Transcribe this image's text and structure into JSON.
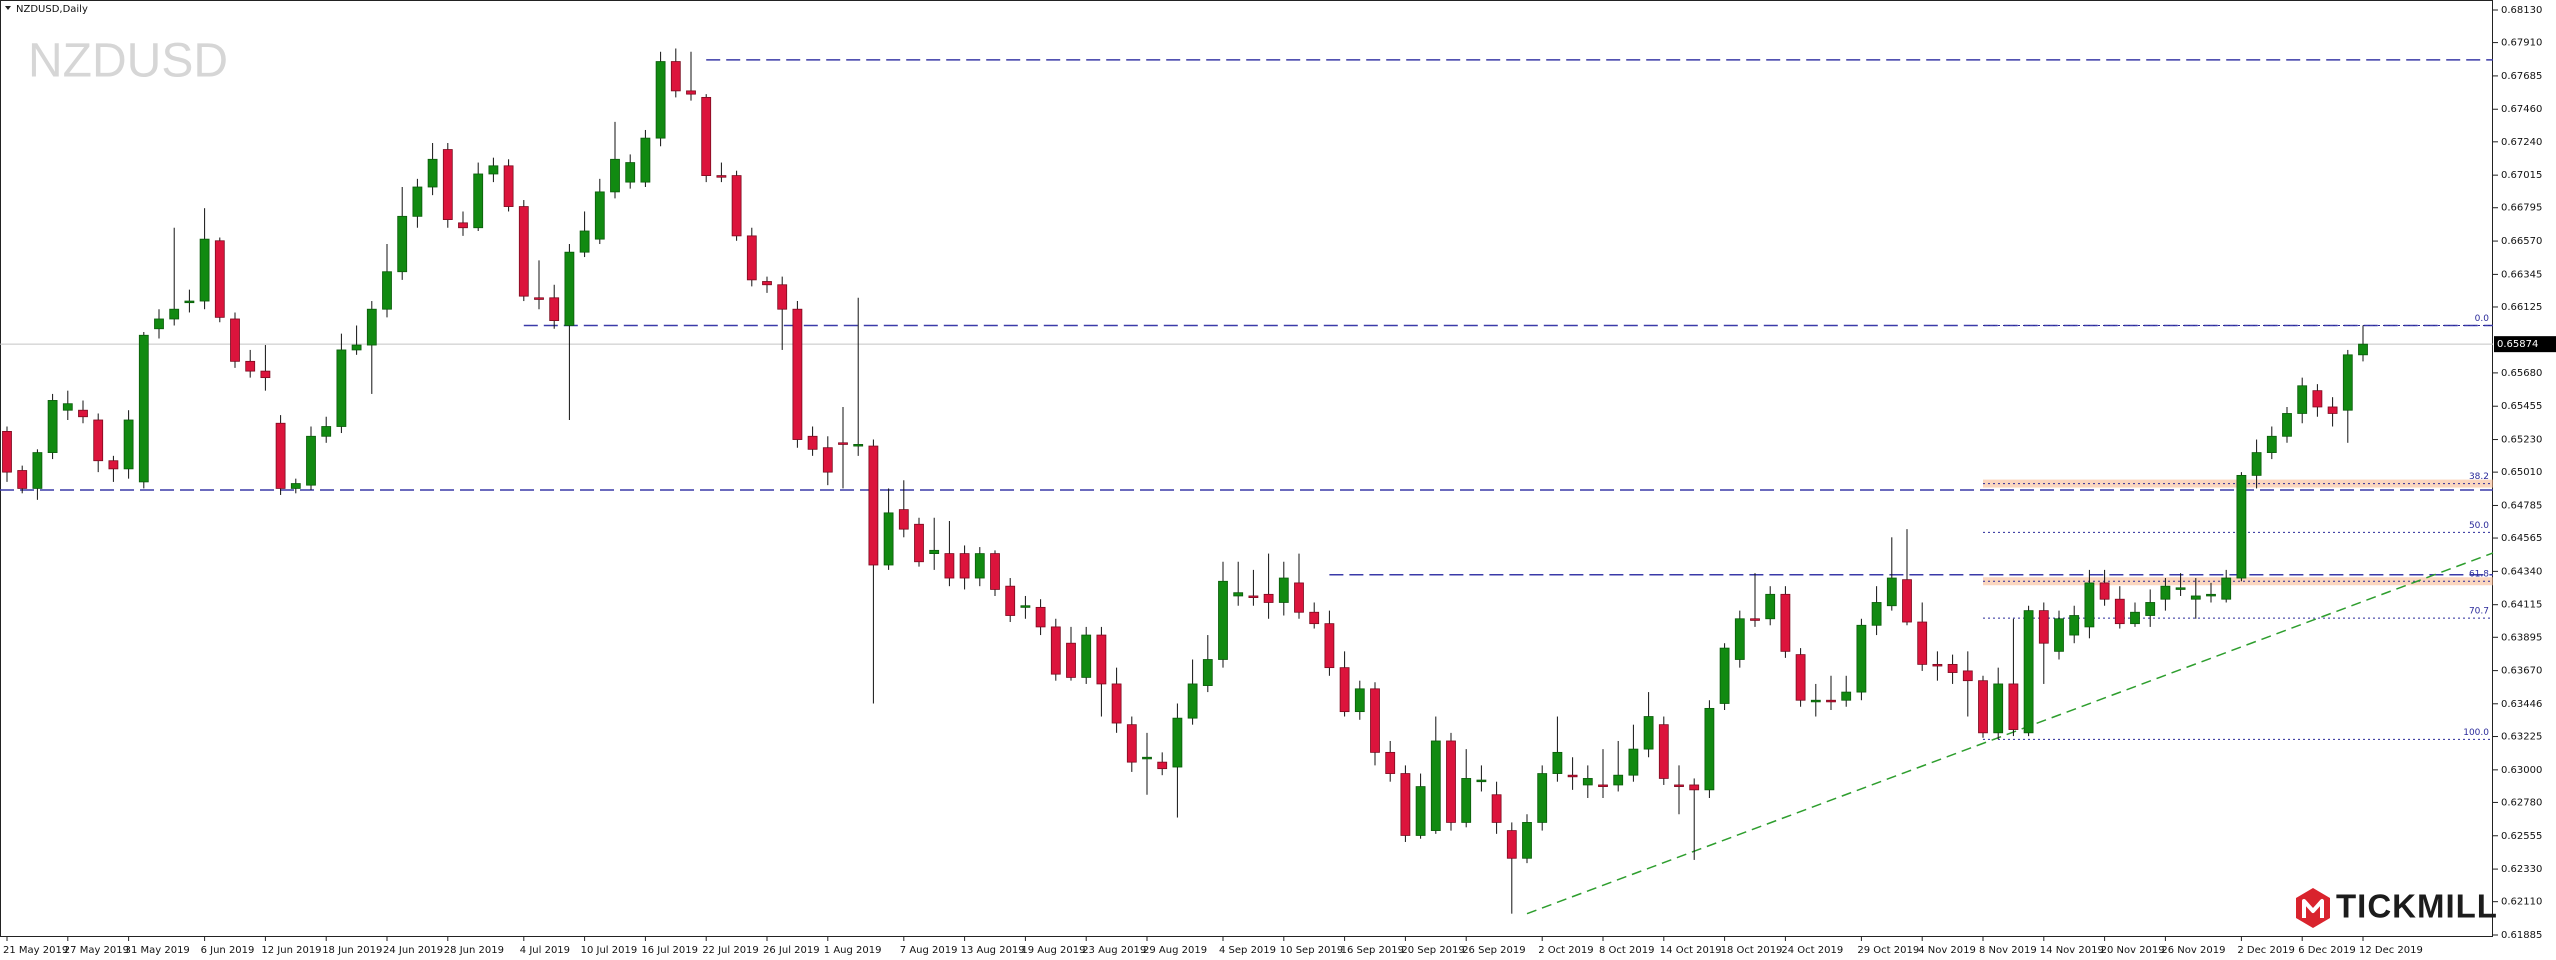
{
  "chart_data": {
    "type": "candlestick",
    "title": "NZDUSD,Daily",
    "watermark": "NZDUSD",
    "logo": "TICKMILL",
    "colors": {
      "up": "#118a11",
      "down": "#dc143c",
      "wick": "#111111",
      "levels": "#3a3aa8",
      "trend": "#2e9e2e",
      "fib": "#2a2a9a",
      "zone": "#f7b48a",
      "price_line": "#c4c4c4"
    },
    "ylim": [
      0.61885,
      0.6813
    ],
    "yticks": [
      {
        "value": 0.6813,
        "label": "0.68130"
      },
      {
        "value": 0.6791,
        "label": "0.67910"
      },
      0.67685,
      {
        "value": 0.6746,
        "label": "0.67460"
      },
      {
        "value": 0.6724,
        "label": "0.67240"
      },
      0.67015,
      0.66795,
      {
        "value": 0.6657,
        "label": "0.66570"
      },
      0.66345,
      0.66125,
      {
        "value": 0.6568,
        "label": "0.65680"
      },
      0.65455,
      {
        "value": 0.6523,
        "label": "0.65230"
      },
      {
        "value": 0.6501,
        "label": "0.65010"
      },
      0.64785,
      0.64565,
      {
        "value": 0.6434,
        "label": "0.64340"
      },
      0.64115,
      0.63895,
      {
        "value": 0.6367,
        "label": "0.63670"
      },
      0.63446,
      0.63225,
      {
        "value": 0.63,
        "label": "0.63000"
      },
      {
        "value": 0.6278,
        "label": "0.62780"
      },
      0.62555,
      {
        "value": 0.6233,
        "label": "0.62330"
      },
      {
        "value": 0.6211,
        "label": "0.62110"
      },
      0.61885
    ],
    "categories": [
      "21 May 2019",
      null,
      null,
      null,
      "27 May 2019",
      null,
      null,
      null,
      "31 May 2019",
      null,
      null,
      null,
      null,
      "6 Jun 2019",
      null,
      null,
      null,
      "12 Jun 2019",
      null,
      null,
      null,
      "18 Jun 2019",
      null,
      null,
      null,
      "24 Jun 2019",
      null,
      null,
      null,
      "28 Jun 2019",
      null,
      null,
      null,
      null,
      "4 Jul 2019",
      null,
      null,
      null,
      "10 Jul 2019",
      null,
      null,
      null,
      "16 Jul 2019",
      null,
      null,
      null,
      "22 Jul 2019",
      null,
      null,
      null,
      "26 Jul 2019",
      null,
      null,
      null,
      "1 Aug 2019",
      null,
      null,
      null,
      null,
      "7 Aug 2019",
      null,
      null,
      null,
      "13 Aug 2019",
      null,
      null,
      null,
      "19 Aug 2019",
      null,
      null,
      null,
      "23 Aug 2019",
      null,
      null,
      null,
      "29 Aug 2019",
      null,
      null,
      null,
      null,
      "4 Sep 2019",
      null,
      null,
      null,
      "10 Sep 2019",
      null,
      null,
      null,
      "16 Sep 2019",
      null,
      null,
      null,
      "20 Sep 2019",
      null,
      null,
      null,
      "26 Sep 2019",
      null,
      null,
      null,
      null,
      "2 Oct 2019",
      null,
      null,
      null,
      "8 Oct 2019",
      null,
      null,
      null,
      "14 Oct 2019",
      null,
      null,
      null,
      "18 Oct 2019",
      null,
      null,
      null,
      "24 Oct 2019",
      null,
      null,
      null,
      null,
      "29 Oct 2019",
      null,
      null,
      null,
      "4 Nov 2019",
      null,
      null,
      null,
      "8 Nov 2019",
      null,
      null,
      null,
      "14 Nov 2019",
      null,
      null,
      null,
      "20 Nov 2019",
      null,
      null,
      null,
      "26 Nov 2019",
      null,
      null,
      null,
      null,
      "2 Dec 2019",
      null,
      null,
      null,
      "6 Dec 2019",
      null,
      null,
      null,
      "12 Dec 2019"
    ],
    "ohlc": [
      [
        0.65285,
        0.65318,
        0.64944,
        0.6501
      ],
      [
        0.65021,
        0.65054,
        0.64867,
        0.649
      ],
      [
        0.649,
        0.65164,
        0.64823,
        0.65142
      ],
      [
        0.65142,
        0.65538,
        0.65098,
        0.65494
      ],
      [
        0.65428,
        0.6556,
        0.65362,
        0.65472
      ],
      [
        0.65428,
        0.65494,
        0.6534,
        0.65384
      ],
      [
        0.65362,
        0.65406,
        0.6501,
        0.65087
      ],
      [
        0.65087,
        0.6512,
        0.64944,
        0.65032
      ],
      [
        0.65032,
        0.65428,
        0.64966,
        0.65362
      ],
      [
        0.64944,
        0.65956,
        0.649,
        0.65934
      ],
      [
        0.65978,
        0.6611,
        0.65912,
        0.66044
      ],
      [
        0.66044,
        0.6666,
        0.66,
        0.6611
      ],
      [
        0.66154,
        0.66242,
        0.66088,
        0.66165
      ],
      [
        0.66165,
        0.66792,
        0.6611,
        0.66583
      ],
      [
        0.66572,
        0.66594,
        0.66022,
        0.66055
      ],
      [
        0.66044,
        0.66088,
        0.65714,
        0.65758
      ],
      [
        0.65758,
        0.65835,
        0.65648,
        0.65692
      ],
      [
        0.65692,
        0.65868,
        0.6556,
        0.65648
      ],
      [
        0.6534,
        0.65395,
        0.64856,
        0.649
      ],
      [
        0.649,
        0.64966,
        0.64867,
        0.64933
      ],
      [
        0.64922,
        0.65318,
        0.64889,
        0.65252
      ],
      [
        0.65252,
        0.65384,
        0.65208,
        0.65318
      ],
      [
        0.65318,
        0.65945,
        0.65274,
        0.65835
      ],
      [
        0.65835,
        0.66,
        0.65802,
        0.65868
      ],
      [
        0.65868,
        0.66165,
        0.65538,
        0.6611
      ],
      [
        0.6611,
        0.6655,
        0.66055,
        0.66363
      ],
      [
        0.66363,
        0.66935,
        0.66308,
        0.66737
      ],
      [
        0.66737,
        0.6699,
        0.6666,
        0.66935
      ],
      [
        0.66935,
        0.67232,
        0.6688,
        0.67122
      ],
      [
        0.67188,
        0.67232,
        0.6666,
        0.66715
      ],
      [
        0.66693,
        0.6677,
        0.66605,
        0.6666
      ],
      [
        0.6666,
        0.671,
        0.66638,
        0.67023
      ],
      [
        0.67023,
        0.67133,
        0.66968,
        0.67078
      ],
      [
        0.67078,
        0.67122,
        0.6677,
        0.66803
      ],
      [
        0.66803,
        0.66847,
        0.66165,
        0.66198
      ],
      [
        0.66187,
        0.6644,
        0.6611,
        0.66176
      ],
      [
        0.66187,
        0.66275,
        0.65978,
        0.66033
      ],
      [
        0.66,
        0.6655,
        0.65362,
        0.66495
      ],
      [
        0.66495,
        0.6677,
        0.66462,
        0.66638
      ],
      [
        0.66583,
        0.6699,
        0.6655,
        0.66902
      ],
      [
        0.66902,
        0.67375,
        0.66858,
        0.67122
      ],
      [
        0.66968,
        0.67155,
        0.66924,
        0.671
      ],
      [
        0.66968,
        0.6732,
        0.66935,
        0.67265
      ],
      [
        0.67265,
        0.67848,
        0.6721,
        0.67782
      ],
      [
        0.67782,
        0.6787,
        0.6754,
        0.67584
      ],
      [
        0.67584,
        0.67848,
        0.67518,
        0.67562
      ],
      [
        0.6754,
        0.67562,
        0.66968,
        0.67012
      ],
      [
        0.67012,
        0.671,
        0.66968,
        0.67001
      ],
      [
        0.67012,
        0.67045,
        0.66572,
        0.66605
      ],
      [
        0.66605,
        0.6666,
        0.66264,
        0.66308
      ],
      [
        0.66297,
        0.6633,
        0.6622,
        0.66275
      ],
      [
        0.66275,
        0.6633,
        0.65835,
        0.6611
      ],
      [
        0.6611,
        0.66165,
        0.65175,
        0.6523
      ],
      [
        0.65252,
        0.65318,
        0.6512,
        0.65164
      ],
      [
        0.65175,
        0.65252,
        0.64922,
        0.6501
      ],
      [
        0.65208,
        0.6545,
        0.649,
        0.65197
      ],
      [
        0.65186,
        0.66187,
        0.6512,
        0.65197
      ],
      [
        0.65186,
        0.6523,
        0.63448,
        0.64383
      ],
      [
        0.64383,
        0.649,
        0.6435,
        0.64735
      ],
      [
        0.64757,
        0.64955,
        0.6457,
        0.64625
      ],
      [
        0.64658,
        0.64702,
        0.64372,
        0.64405
      ],
      [
        0.6446,
        0.64702,
        0.6435,
        0.64482
      ],
      [
        0.6446,
        0.6468,
        0.6424,
        0.64295
      ],
      [
        0.6446,
        0.64515,
        0.64218,
        0.64295
      ],
      [
        0.64295,
        0.64504,
        0.6424,
        0.6446
      ],
      [
        0.6446,
        0.64482,
        0.64174,
        0.64218
      ],
      [
        0.6424,
        0.64295,
        0.63998,
        0.64042
      ],
      [
        0.64097,
        0.64174,
        0.6402,
        0.64108
      ],
      [
        0.64097,
        0.64152,
        0.6391,
        0.63965
      ],
      [
        0.63965,
        0.6402,
        0.63602,
        0.63646
      ],
      [
        0.63855,
        0.63965,
        0.63602,
        0.63624
      ],
      [
        0.63624,
        0.63965,
        0.6358,
        0.6391
      ],
      [
        0.6391,
        0.63965,
        0.6336,
        0.6358
      ],
      [
        0.6358,
        0.6369,
        0.6325,
        0.63316
      ],
      [
        0.63305,
        0.6336,
        0.62986,
        0.63052
      ],
      [
        0.63074,
        0.6325,
        0.62832,
        0.63085
      ],
      [
        0.63052,
        0.63118,
        0.62964,
        0.63008
      ],
      [
        0.63019,
        0.63448,
        0.62678,
        0.63349
      ],
      [
        0.63349,
        0.63745,
        0.63305,
        0.6358
      ],
      [
        0.63569,
        0.6391,
        0.63525,
        0.63745
      ],
      [
        0.63745,
        0.64405,
        0.6369,
        0.64273
      ],
      [
        0.64174,
        0.64405,
        0.64108,
        0.64196
      ],
      [
        0.64174,
        0.6435,
        0.64108,
        0.64163
      ],
      [
        0.64185,
        0.6446,
        0.6402,
        0.6413
      ],
      [
        0.6413,
        0.64405,
        0.64042,
        0.64295
      ],
      [
        0.64262,
        0.6446,
        0.6402,
        0.64064
      ],
      [
        0.64064,
        0.6413,
        0.63954,
        0.63987
      ],
      [
        0.63987,
        0.64075,
        0.63635,
        0.6369
      ],
      [
        0.6369,
        0.638,
        0.6336,
        0.63393
      ],
      [
        0.63393,
        0.63602,
        0.63338,
        0.63547
      ],
      [
        0.63547,
        0.63591,
        0.6303,
        0.63118
      ],
      [
        0.63118,
        0.63195,
        0.6292,
        0.62975
      ],
      [
        0.62975,
        0.6303,
        0.62513,
        0.62557
      ],
      [
        0.62557,
        0.62975,
        0.62535,
        0.62887
      ],
      [
        0.6259,
        0.6336,
        0.62568,
        0.63195
      ],
      [
        0.63195,
        0.6325,
        0.6259,
        0.62645
      ],
      [
        0.62645,
        0.6314,
        0.62612,
        0.62942
      ],
      [
        0.6292,
        0.6303,
        0.62854,
        0.62931
      ],
      [
        0.62832,
        0.6292,
        0.62568,
        0.62645
      ],
      [
        0.6259,
        0.62645,
        0.62029,
        0.62403
      ],
      [
        0.62403,
        0.627,
        0.6237,
        0.62645
      ],
      [
        0.62645,
        0.6303,
        0.6259,
        0.62975
      ],
      [
        0.62975,
        0.6336,
        0.6292,
        0.63118
      ],
      [
        0.62964,
        0.63085,
        0.62865,
        0.62953
      ],
      [
        0.62898,
        0.6303,
        0.6281,
        0.62942
      ],
      [
        0.62898,
        0.6314,
        0.6281,
        0.62887
      ],
      [
        0.62898,
        0.63195,
        0.62854,
        0.62964
      ],
      [
        0.62964,
        0.63305,
        0.6292,
        0.6314
      ],
      [
        0.6314,
        0.63525,
        0.63085,
        0.6336
      ],
      [
        0.63305,
        0.6336,
        0.62898,
        0.62942
      ],
      [
        0.62898,
        0.6303,
        0.627,
        0.62887
      ],
      [
        0.62898,
        0.62942,
        0.62392,
        0.62865
      ],
      [
        0.62865,
        0.6347,
        0.6281,
        0.63415
      ],
      [
        0.63448,
        0.63855,
        0.63404,
        0.63822
      ],
      [
        0.63745,
        0.64075,
        0.6369,
        0.6402
      ],
      [
        0.6402,
        0.64328,
        0.63965,
        0.64009
      ],
      [
        0.6402,
        0.6424,
        0.63976,
        0.64185
      ],
      [
        0.64185,
        0.6424,
        0.63756,
        0.638
      ],
      [
        0.63778,
        0.63822,
        0.63426,
        0.6347
      ],
      [
        0.63459,
        0.6358,
        0.6336,
        0.6347
      ],
      [
        0.6347,
        0.63635,
        0.63404,
        0.63459
      ],
      [
        0.6347,
        0.63635,
        0.63426,
        0.63525
      ],
      [
        0.63525,
        0.6402,
        0.6347,
        0.63976
      ],
      [
        0.63976,
        0.6424,
        0.6391,
        0.6413
      ],
      [
        0.64108,
        0.6457,
        0.64075,
        0.64295
      ],
      [
        0.64284,
        0.64625,
        0.63976,
        0.63998
      ],
      [
        0.63998,
        0.6413,
        0.63668,
        0.63712
      ],
      [
        0.63712,
        0.638,
        0.63602,
        0.63701
      ],
      [
        0.63712,
        0.63778,
        0.6358,
        0.63657
      ],
      [
        0.63668,
        0.638,
        0.6336,
        0.63602
      ],
      [
        0.63602,
        0.63635,
        0.63217,
        0.6325
      ],
      [
        0.6325,
        0.6369,
        0.63206,
        0.6358
      ],
      [
        0.6358,
        0.6402,
        0.63228,
        0.63272
      ],
      [
        0.6325,
        0.64108,
        0.63228,
        0.64075
      ],
      [
        0.64075,
        0.6413,
        0.6358,
        0.63855
      ],
      [
        0.638,
        0.64075,
        0.63745,
        0.6402
      ],
      [
        0.6391,
        0.64108,
        0.63855,
        0.64042
      ],
      [
        0.63965,
        0.6435,
        0.63888,
        0.64262
      ],
      [
        0.64262,
        0.6435,
        0.64108,
        0.64152
      ],
      [
        0.64152,
        0.6424,
        0.63954,
        0.63987
      ],
      [
        0.63987,
        0.6413,
        0.63965,
        0.64064
      ],
      [
        0.64042,
        0.64218,
        0.63965,
        0.6413
      ],
      [
        0.64152,
        0.64295,
        0.64075,
        0.6424
      ],
      [
        0.64218,
        0.64328,
        0.64174,
        0.64229
      ],
      [
        0.64152,
        0.64295,
        0.6402,
        0.64174
      ],
      [
        0.64174,
        0.64262,
        0.6413,
        0.64185
      ],
      [
        0.64152,
        0.6435,
        0.6413,
        0.64295
      ],
      [
        0.64295,
        0.6501,
        0.64273,
        0.64988
      ],
      [
        0.64988,
        0.6523,
        0.649,
        0.65142
      ],
      [
        0.65142,
        0.65318,
        0.65098,
        0.65252
      ],
      [
        0.65252,
        0.6545,
        0.65208,
        0.65406
      ],
      [
        0.65406,
        0.65648,
        0.6534,
        0.65593
      ],
      [
        0.6556,
        0.65604,
        0.65384,
        0.6545
      ],
      [
        0.6545,
        0.65516,
        0.65318,
        0.65406
      ],
      [
        0.65428,
        0.65835,
        0.65208,
        0.65802
      ],
      [
        0.65802,
        0.66,
        0.65758,
        0.65874
      ]
    ],
    "hlines": [
      0.67793,
      0.66,
      0.64889,
      0.64317
    ],
    "trendline": [
      {
        "i": 100,
        "price": 0.62029
      },
      {
        "i": 131,
        "price": 0.63217
      }
    ],
    "fibonacci": {
      "high": 0.66,
      "low": 0.63206,
      "levels": [
        {
          "value": 0,
          "label": "0.0"
        },
        38.2,
        {
          "value": 50,
          "label": "50.0"
        },
        61.8,
        70.7,
        {
          "value": 100,
          "label": "100.0"
        }
      ]
    }
  }
}
